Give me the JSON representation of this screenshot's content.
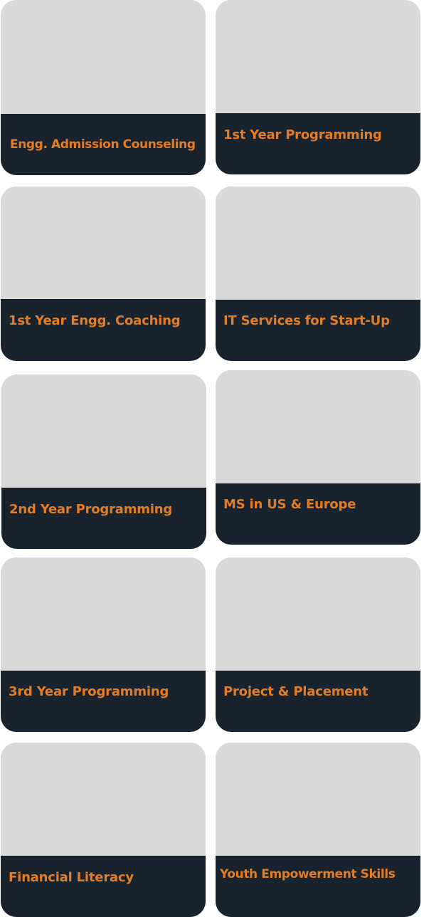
{
  "cards": [
    {
      "title": "Engg. Admission Counseling"
    },
    {
      "title": "1st Year Programming"
    },
    {
      "title": "1st Year Engg. Coaching"
    },
    {
      "title": "IT Services for Start-Up"
    },
    {
      "title": "2nd Year Programming"
    },
    {
      "title": "MS in US & Europe"
    },
    {
      "title": "3rd Year Programming"
    },
    {
      "title": "Project & Placement"
    },
    {
      "title": "Financial Literacy"
    },
    {
      "title": "Youth Empowerment Skills"
    }
  ],
  "colors": {
    "thumbnail": "#d9d9d9",
    "caption_bg": "#19232d",
    "title_text": "#e27d27"
  }
}
